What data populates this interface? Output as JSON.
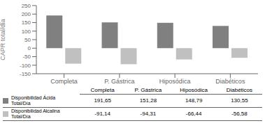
{
  "chart_data": {
    "type": "bar",
    "categories": [
      "Completa",
      "P. Gástrica",
      "Hiposódica",
      "Diabéticos"
    ],
    "y_label": "CAPR total/día",
    "ylim": [
      -150,
      250
    ],
    "yticks": [
      -150,
      -100,
      -50,
      0,
      50,
      100,
      150,
      200,
      250
    ],
    "grid": false,
    "series": [
      {
        "name": "Disponibilidad Ácida\nTotal/Día",
        "color": "#808080",
        "values": [
          191.65,
          151.28,
          148.79,
          130.55
        ],
        "value_labels": [
          "191,65",
          "151,28",
          "148,79",
          "130,55"
        ]
      },
      {
        "name": "Disponibilidad Alcalina\nTotal/Día",
        "color": "#c0c0c0",
        "values": [
          -91.14,
          -94.31,
          -66.44,
          -56.58
        ],
        "value_labels": [
          "-91,14",
          "-94,31",
          "-66,44",
          "-56,58"
        ]
      }
    ]
  }
}
